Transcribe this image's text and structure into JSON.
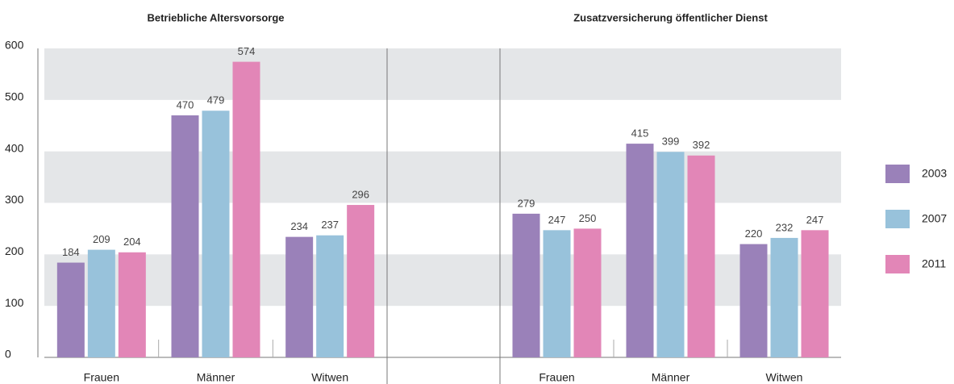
{
  "chart_data": {
    "type": "bar",
    "ylim": [
      0,
      600
    ],
    "yticks": [
      0,
      100,
      200,
      300,
      400,
      500,
      600
    ],
    "grid": "bands",
    "legend": "right",
    "series": [
      {
        "name": "2003",
        "color": "#9a81b9"
      },
      {
        "name": "2007",
        "color": "#98c2db"
      },
      {
        "name": "2011",
        "color": "#e286b7"
      }
    ],
    "panels": [
      {
        "title": "Betriebliche Altersvorsorge",
        "categories": [
          "Frauen",
          "Männer",
          "Witwen"
        ],
        "values": [
          [
            184,
            470,
            234
          ],
          [
            209,
            479,
            237
          ],
          [
            204,
            574,
            296
          ]
        ]
      },
      {
        "title": "Zusatzversicherung öffentlicher Dienst",
        "categories": [
          "Frauen",
          "Männer",
          "Witwen"
        ],
        "values": [
          [
            279,
            415,
            220
          ],
          [
            247,
            399,
            232
          ],
          [
            250,
            392,
            247
          ]
        ]
      }
    ]
  }
}
